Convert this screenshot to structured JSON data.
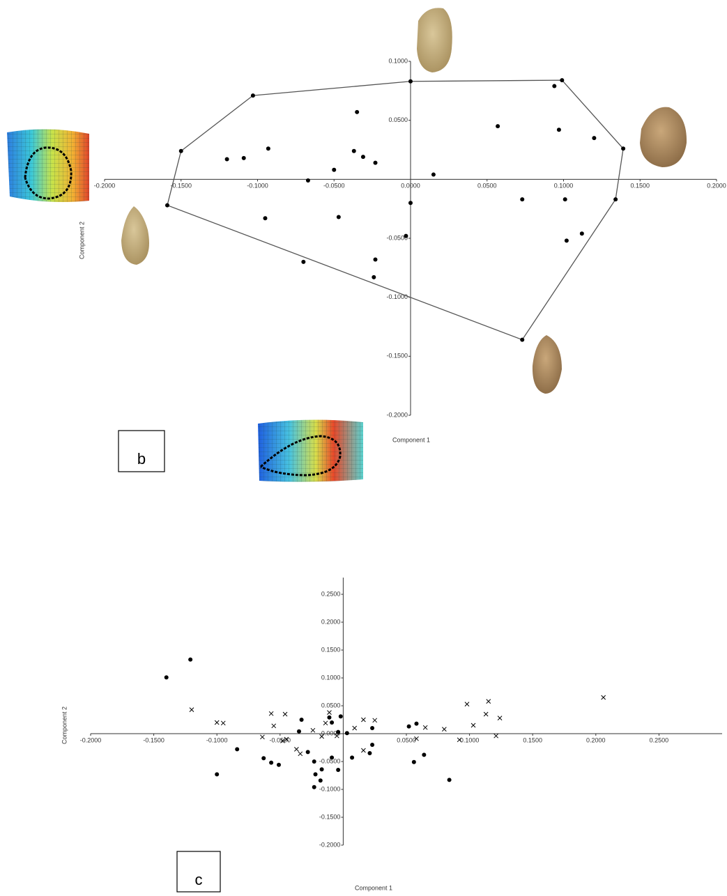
{
  "chart_data": [
    {
      "type": "scatter",
      "panel_label": "b",
      "x_label": "Component 1",
      "y_label": "Component 2",
      "xlim": [
        -0.2,
        0.2
      ],
      "ylim": [
        -0.2,
        0.1
      ],
      "xticks": [
        {
          "value": -0.2,
          "label": "-0.2000"
        },
        {
          "value": -0.15,
          "label": "-0.1500"
        },
        {
          "value": -0.1,
          "label": "-0.1000"
        },
        {
          "value": -0.05,
          "label": "-0.0500"
        },
        {
          "value": 0,
          "label": "0.0000"
        },
        {
          "value": 0.05,
          "label": "0.0500"
        },
        {
          "value": 0.1,
          "label": "0.1000"
        },
        {
          "value": 0.15,
          "label": "0.1500"
        },
        {
          "value": 0.2,
          "label": "0.2000"
        }
      ],
      "yticks": [
        {
          "value": 0.1,
          "label": "0.1000"
        },
        {
          "value": 0.05,
          "label": "0.0500"
        },
        {
          "value": -0.05,
          "label": "-0.0500"
        },
        {
          "value": -0.1,
          "label": "-0.1000"
        },
        {
          "value": -0.15,
          "label": "-0.1500"
        },
        {
          "value": -0.2,
          "label": "-0.2000"
        }
      ],
      "hull": [
        0,
        1,
        2,
        4,
        7,
        8,
        6,
        5
      ],
      "series": [
        {
          "color": "#000000",
          "marker": "dot",
          "x": [
            -0.103,
            0.0,
            0.099,
            0.094,
            0.139,
            -0.15,
            -0.159,
            0.134,
            0.073,
            -0.07,
            -0.12,
            -0.109,
            -0.093,
            -0.035,
            -0.037,
            -0.031,
            -0.023,
            -0.05,
            -0.067,
            0.015,
            0.057,
            0.097,
            0.12,
            0.073,
            0.101,
            0.0,
            -0.047,
            -0.095,
            -0.003,
            0.112,
            0.102,
            -0.023,
            -0.024
          ],
          "y": [
            0.071,
            0.083,
            0.084,
            0.079,
            0.026,
            0.024,
            -0.022,
            -0.017,
            -0.136,
            -0.07,
            0.017,
            0.018,
            0.026,
            0.057,
            0.024,
            0.019,
            0.014,
            0.008,
            -0.001,
            0.004,
            0.045,
            0.042,
            0.035,
            -0.017,
            -0.017,
            -0.02,
            -0.032,
            -0.033,
            -0.048,
            -0.046,
            -0.052,
            -0.068,
            -0.083
          ]
        }
      ]
    },
    {
      "type": "scatter",
      "panel_label": "c",
      "x_label": "Component 1",
      "y_label": "Component 2",
      "xlim": [
        -0.2,
        0.3
      ],
      "ylim": [
        -0.2,
        0.28
      ],
      "xticks": [
        {
          "value": -0.2,
          "label": "-0.2000"
        },
        {
          "value": -0.15,
          "label": "-0.1500"
        },
        {
          "value": -0.1,
          "label": "-0.1000"
        },
        {
          "value": -0.05,
          "label": "-0.0500"
        },
        {
          "value": 0.05,
          "label": "0.0500"
        },
        {
          "value": 0.1,
          "label": "0.1000"
        },
        {
          "value": 0.15,
          "label": "0.1500"
        },
        {
          "value": 0.2,
          "label": "0.2000"
        },
        {
          "value": 0.25,
          "label": "0.2500"
        }
      ],
      "yticks": [
        {
          "value": 0.25,
          "label": "0.2500"
        },
        {
          "value": 0.2,
          "label": "0.2000"
        },
        {
          "value": 0.15,
          "label": "0.1500"
        },
        {
          "value": 0.1,
          "label": "0.1000"
        },
        {
          "value": 0.05,
          "label": "0.0500"
        },
        {
          "value": 0,
          "label": "0.0000"
        },
        {
          "value": -0.05,
          "label": "-0.0500"
        },
        {
          "value": -0.1,
          "label": "-0.1000"
        },
        {
          "value": -0.15,
          "label": "-0.1500"
        },
        {
          "value": -0.2,
          "label": "-0.2000"
        }
      ],
      "series": [
        {
          "color": "#000000",
          "marker": "dot",
          "x": [
            -0.121,
            -0.14,
            -0.084,
            -0.1,
            -0.063,
            -0.057,
            -0.051,
            -0.033,
            -0.035,
            -0.028,
            -0.023,
            -0.022,
            -0.017,
            -0.023,
            -0.018,
            -0.004,
            -0.004,
            -0.011,
            -0.002,
            0.003,
            -0.009,
            -0.009,
            0.007,
            0.021,
            0.023,
            0.023,
            0.052,
            0.058,
            0.056,
            0.064,
            0.084
          ],
          "y": [
            0.133,
            0.101,
            -0.028,
            -0.073,
            -0.044,
            -0.052,
            -0.056,
            0.025,
            0.004,
            -0.033,
            -0.05,
            -0.073,
            -0.064,
            -0.096,
            -0.084,
            -0.065,
            0.003,
            0.029,
            0.031,
            0.001,
            0.02,
            -0.043,
            -0.043,
            -0.035,
            -0.02,
            0.01,
            0.013,
            0.018,
            -0.051,
            -0.038,
            -0.083
          ]
        },
        {
          "color": "#000000",
          "marker": "cross",
          "x": [
            -0.12,
            -0.1,
            -0.095,
            -0.057,
            -0.046,
            -0.055,
            -0.064,
            -0.045,
            -0.048,
            -0.037,
            -0.034,
            -0.024,
            -0.014,
            -0.011,
            -0.017,
            -0.005,
            0.009,
            0.016,
            0.025,
            0.016,
            0.058,
            0.065,
            0.08,
            0.092,
            0.098,
            0.103,
            0.113,
            0.115,
            0.121,
            0.124,
            0.206
          ],
          "y": [
            0.043,
            0.02,
            0.019,
            0.036,
            0.035,
            0.014,
            -0.006,
            -0.01,
            -0.013,
            -0.028,
            -0.036,
            0.006,
            0.019,
            0.038,
            -0.005,
            -0.004,
            0.01,
            0.025,
            0.024,
            -0.03,
            -0.009,
            0.011,
            0.008,
            -0.011,
            0.053,
            0.015,
            0.035,
            0.058,
            -0.004,
            0.028,
            0.065
          ]
        }
      ]
    }
  ]
}
